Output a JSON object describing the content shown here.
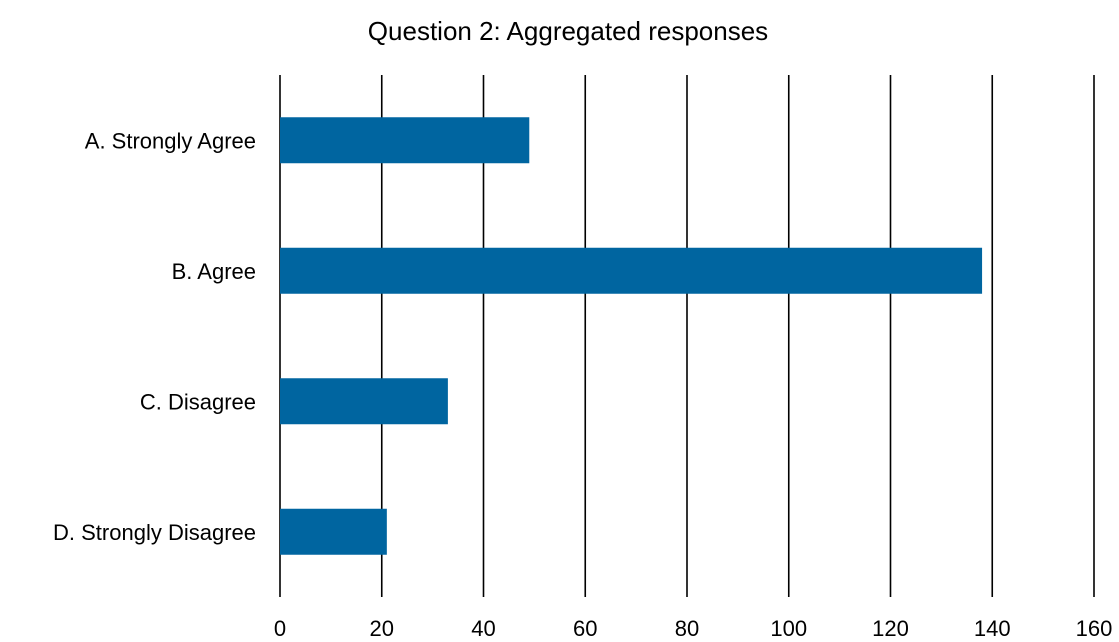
{
  "chart_data": {
    "type": "bar",
    "orientation": "horizontal",
    "title": "Question 2: Aggregated responses",
    "xlabel": "",
    "ylabel": "",
    "categories": [
      "A. Strongly Agree",
      "B. Agree",
      "C. Disagree",
      "D. Strongly Disagree"
    ],
    "values": [
      49,
      138,
      33,
      21
    ],
    "xlim": [
      0,
      160
    ],
    "xticks": [
      0,
      20,
      40,
      60,
      80,
      100,
      120,
      140,
      160
    ],
    "grid": "vertical",
    "legend": "none",
    "bar_color": "#0065a0"
  }
}
